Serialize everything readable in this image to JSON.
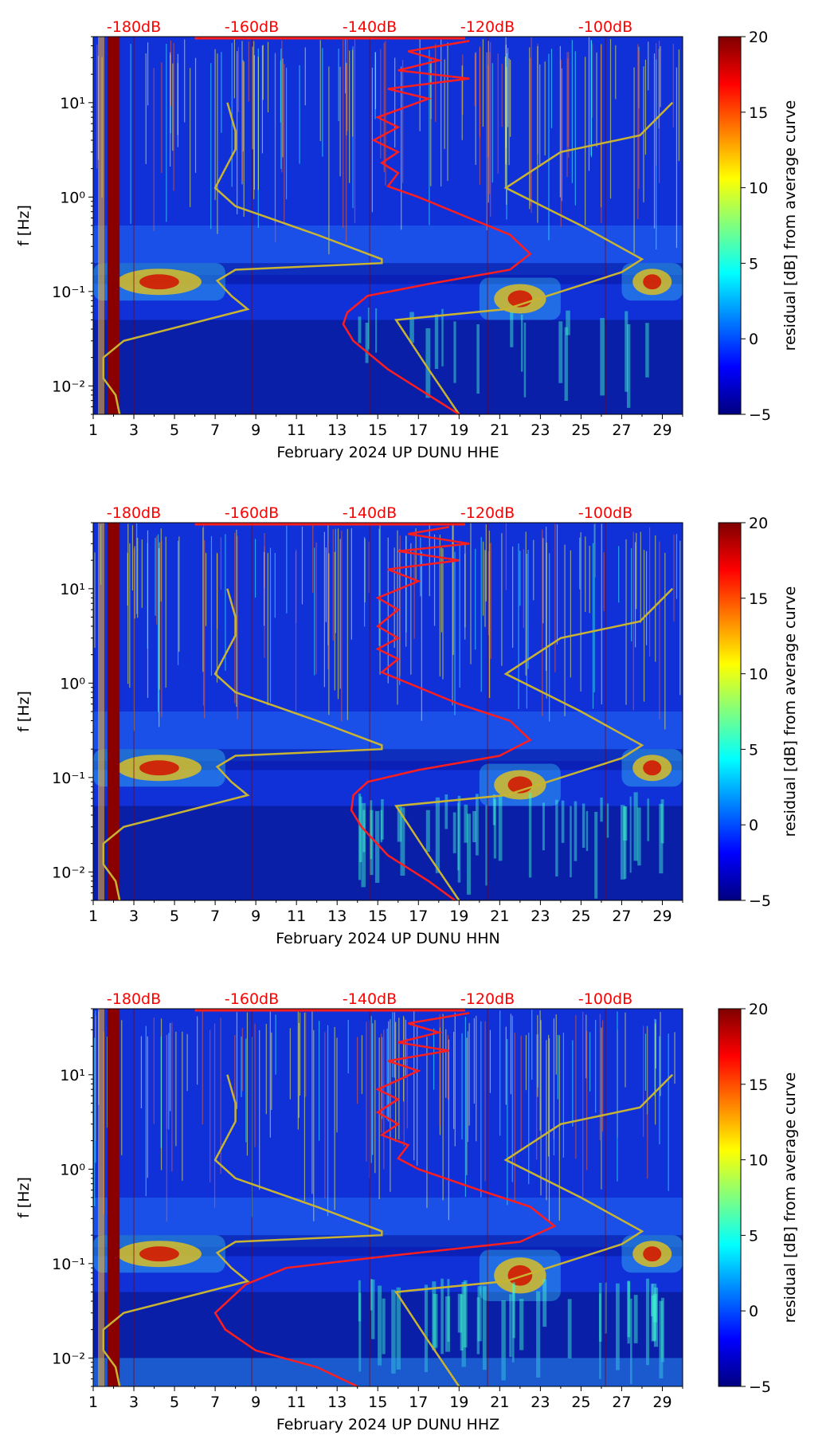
{
  "figure": {
    "station": "UP DUNU",
    "month": "February 2024"
  },
  "colorbar": {
    "label": "residual [dB] from average curve",
    "range": [
      -5,
      20
    ],
    "ticks": [
      -5,
      0,
      5,
      10,
      15,
      20
    ],
    "tick_labels": [
      "−5",
      "0",
      "5",
      "10",
      "15",
      "20"
    ],
    "colormap": "jet",
    "colors": [
      "#00007f",
      "#0000ff",
      "#007fff",
      "#00ffff",
      "#7fff7f",
      "#ffff00",
      "#ff7f00",
      "#ff0000",
      "#7f0000"
    ]
  },
  "line_colors": {
    "noise_model": "#c8b432",
    "psd_curve": "#ff1e1e",
    "db_axis": "#ff0000"
  },
  "chart_data": [
    {
      "type": "heatmap",
      "channel": "HHE",
      "xlabel": "February 2024 UP DUNU  HHE",
      "ylabel": "f [Hz]",
      "xlim": [
        1,
        30
      ],
      "ylim": [
        0.005,
        50
      ],
      "yscale": "log",
      "xticks": [
        1,
        3,
        5,
        7,
        9,
        11,
        13,
        15,
        17,
        19,
        21,
        23,
        25,
        27,
        29
      ],
      "xtick_labels": [
        "1",
        "3",
        "5",
        "7",
        "9",
        "11",
        "13",
        "15",
        "17",
        "19",
        "21",
        "23",
        "25",
        "27",
        "29"
      ],
      "yticks": [
        0.01,
        0.1,
        1,
        10
      ],
      "ytick_labels": [
        "10⁻²",
        "10⁻¹",
        "10⁰",
        "10¹"
      ],
      "top_axis_labels": [
        "-180dB",
        "-160dB",
        "-140dB",
        "-120dB",
        "-100dB"
      ],
      "top_axis_positions": [
        3,
        8.8,
        14.6,
        20.4,
        26.2
      ],
      "high_residual_days": [
        1.7,
        2.3
      ],
      "noise_model_low": {
        "x": [
          7.6,
          8.0,
          8.0,
          7.0,
          8.0,
          12.0,
          15.2,
          15.2,
          8.0,
          7.1,
          7.8,
          8.6,
          2.5,
          1.5,
          1.5,
          2.1,
          2.3
        ],
        "f": [
          10,
          5,
          3.2,
          1.25,
          0.8,
          0.4,
          0.22,
          0.2,
          0.17,
          0.13,
          0.09,
          0.065,
          0.03,
          0.02,
          0.012,
          0.008,
          0.005
        ]
      },
      "noise_model_high": {
        "x": [
          29.5,
          27.9,
          24.0,
          21.3,
          25.0,
          28.0,
          27.0,
          21.3,
          15.9,
          17.5,
          19.0
        ],
        "f": [
          10,
          4.5,
          3,
          1.25,
          0.5,
          0.22,
          0.16,
          0.065,
          0.05,
          0.015,
          0.005
        ]
      },
      "psd_curve": {
        "x": [
          19.5,
          16.5,
          18.0,
          16.0,
          19.5,
          15.5,
          17.5,
          15.0,
          16.0,
          14.8,
          16.0,
          15.2,
          16.0,
          15.5,
          17.0,
          19.5,
          21.5,
          22.5,
          21.5,
          17.5,
          14.5,
          13.5,
          13.3,
          13.8,
          15.5,
          17.5,
          19.0
        ],
        "f": [
          45,
          35,
          28,
          22,
          18,
          14,
          11,
          7,
          5.5,
          4,
          3,
          2.3,
          1.8,
          1.3,
          1.0,
          0.6,
          0.4,
          0.25,
          0.17,
          0.12,
          0.09,
          0.06,
          0.045,
          0.03,
          0.015,
          0.008,
          0.005
        ]
      },
      "dominant_bands": [
        {
          "x": [
            1,
            7.5
          ],
          "f": [
            0.08,
            0.2
          ]
        },
        {
          "x": [
            20,
            24
          ],
          "f": [
            0.05,
            0.14
          ]
        },
        {
          "x": [
            27,
            30
          ],
          "f": [
            0.08,
            0.2
          ]
        }
      ]
    },
    {
      "type": "heatmap",
      "channel": "HHN",
      "xlabel": "February 2024 UP DUNU  HHN",
      "ylabel": "f [Hz]",
      "xlim": [
        1,
        30
      ],
      "ylim": [
        0.005,
        50
      ],
      "yscale": "log",
      "xticks": [
        1,
        3,
        5,
        7,
        9,
        11,
        13,
        15,
        17,
        19,
        21,
        23,
        25,
        27,
        29
      ],
      "xtick_labels": [
        "1",
        "3",
        "5",
        "7",
        "9",
        "11",
        "13",
        "15",
        "17",
        "19",
        "21",
        "23",
        "25",
        "27",
        "29"
      ],
      "yticks": [
        0.01,
        0.1,
        1,
        10
      ],
      "ytick_labels": [
        "10⁻²",
        "10⁻¹",
        "10⁰",
        "10¹"
      ],
      "top_axis_labels": [
        "-180dB",
        "-160dB",
        "-140dB",
        "-120dB",
        "-100dB"
      ],
      "top_axis_positions": [
        3,
        8.8,
        14.6,
        20.4,
        26.2
      ],
      "high_residual_days": [
        1.7,
        2.3
      ],
      "noise_model_low": {
        "x": [
          7.6,
          8.0,
          8.0,
          7.0,
          8.0,
          12.0,
          15.2,
          15.2,
          8.0,
          7.1,
          7.8,
          8.6,
          2.5,
          1.5,
          1.5,
          2.1,
          2.3
        ],
        "f": [
          10,
          5,
          3.2,
          1.25,
          0.8,
          0.4,
          0.22,
          0.2,
          0.17,
          0.13,
          0.09,
          0.065,
          0.03,
          0.02,
          0.012,
          0.008,
          0.005
        ]
      },
      "noise_model_high": {
        "x": [
          29.5,
          27.9,
          24.0,
          21.3,
          25.0,
          28.0,
          27.0,
          21.3,
          15.9,
          17.5,
          19.0
        ],
        "f": [
          10,
          4.5,
          3,
          1.25,
          0.5,
          0.22,
          0.16,
          0.065,
          0.05,
          0.015,
          0.005
        ]
      },
      "psd_curve": {
        "x": [
          18.5,
          16.5,
          19.5,
          16.0,
          19.0,
          15.5,
          17.0,
          15.0,
          16.0,
          15.0,
          16.0,
          15.0,
          16.0,
          15.2,
          16.5,
          19.0,
          21.5,
          22.5,
          21.0,
          17.0,
          14.5,
          13.8,
          13.7,
          14.2,
          15.5,
          17.5,
          18.8
        ],
        "f": [
          45,
          38,
          30,
          25,
          20,
          16,
          12,
          8,
          6,
          4,
          3,
          2.3,
          1.8,
          1.3,
          1.0,
          0.6,
          0.4,
          0.25,
          0.17,
          0.12,
          0.09,
          0.065,
          0.045,
          0.03,
          0.015,
          0.008,
          0.005
        ]
      },
      "dominant_bands": [
        {
          "x": [
            1,
            7.5
          ],
          "f": [
            0.08,
            0.2
          ]
        },
        {
          "x": [
            20,
            24
          ],
          "f": [
            0.05,
            0.14
          ]
        },
        {
          "x": [
            27,
            30
          ],
          "f": [
            0.08,
            0.2
          ]
        }
      ]
    },
    {
      "type": "heatmap",
      "channel": "HHZ",
      "xlabel": "February 2024 UP DUNU  HHZ",
      "ylabel": "f [Hz]",
      "xlim": [
        1,
        30
      ],
      "ylim": [
        0.005,
        50
      ],
      "yscale": "log",
      "xticks": [
        1,
        3,
        5,
        7,
        9,
        11,
        13,
        15,
        17,
        19,
        21,
        23,
        25,
        27,
        29
      ],
      "xtick_labels": [
        "1",
        "3",
        "5",
        "7",
        "9",
        "11",
        "13",
        "15",
        "17",
        "19",
        "21",
        "23",
        "25",
        "27",
        "29"
      ],
      "yticks": [
        0.01,
        0.1,
        1,
        10
      ],
      "ytick_labels": [
        "10⁻²",
        "10⁻¹",
        "10⁰",
        "10¹"
      ],
      "top_axis_labels": [
        "-180dB",
        "-160dB",
        "-140dB",
        "-120dB",
        "-100dB"
      ],
      "top_axis_positions": [
        3,
        8.8,
        14.6,
        20.4,
        26.2
      ],
      "high_residual_days": [
        1.7,
        2.3
      ],
      "noise_model_low": {
        "x": [
          7.6,
          8.0,
          8.0,
          7.0,
          8.0,
          12.0,
          15.2,
          15.2,
          8.0,
          7.1,
          7.8,
          8.6,
          2.5,
          1.5,
          1.5,
          2.1,
          2.3
        ],
        "f": [
          10,
          5,
          3.2,
          1.25,
          0.8,
          0.4,
          0.22,
          0.2,
          0.17,
          0.13,
          0.09,
          0.065,
          0.03,
          0.02,
          0.012,
          0.008,
          0.005
        ]
      },
      "noise_model_high": {
        "x": [
          29.5,
          27.9,
          24.0,
          21.3,
          25.0,
          28.0,
          27.0,
          21.3,
          15.9,
          17.5,
          19.0
        ],
        "f": [
          10,
          4.5,
          3,
          1.25,
          0.5,
          0.22,
          0.16,
          0.065,
          0.05,
          0.015,
          0.005
        ]
      },
      "psd_curve": {
        "x": [
          19.5,
          16.5,
          18.0,
          16.0,
          18.5,
          15.5,
          17.0,
          15.0,
          16.0,
          15.0,
          16.0,
          15.2,
          16.5,
          16.0,
          17.0,
          20.0,
          22.5,
          23.7,
          22.0,
          15.5,
          10.5,
          8.5,
          7.0,
          7.5,
          9.0,
          12.0,
          14.0
        ],
        "f": [
          45,
          35,
          28,
          22,
          18,
          14,
          11,
          7,
          5.5,
          4,
          3,
          2.3,
          1.8,
          1.3,
          1.0,
          0.6,
          0.4,
          0.25,
          0.17,
          0.12,
          0.09,
          0.06,
          0.03,
          0.02,
          0.012,
          0.008,
          0.005
        ]
      },
      "dominant_bands": [
        {
          "x": [
            1,
            7.5
          ],
          "f": [
            0.08,
            0.2
          ]
        },
        {
          "x": [
            20,
            24
          ],
          "f": [
            0.04,
            0.14
          ]
        },
        {
          "x": [
            27,
            30
          ],
          "f": [
            0.08,
            0.2
          ]
        }
      ]
    }
  ]
}
